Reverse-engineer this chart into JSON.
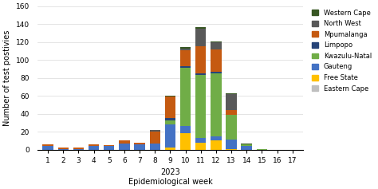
{
  "weeks": [
    1,
    2,
    3,
    4,
    5,
    6,
    7,
    8,
    9,
    10,
    11,
    12,
    13,
    14,
    15,
    16,
    17
  ],
  "provinces_bottom_to_top": [
    "Eastern Cape",
    "Free State",
    "Gauteng",
    "Kwazulu-Natal",
    "Limpopo",
    "Mpumalanga",
    "North West",
    "Western Cape"
  ],
  "colors": {
    "Eastern Cape": "#bfbfbf",
    "Free State": "#ffc000",
    "Gauteng": "#4472c4",
    "Kwazulu-Natal": "#70ad47",
    "Limpopo": "#264478",
    "Mpumalanga": "#c55a11",
    "North West": "#595959",
    "Western Cape": "#375623"
  },
  "data": {
    "Eastern Cape": [
      0,
      0,
      0,
      0,
      0,
      0,
      0,
      0,
      0,
      0,
      0,
      0,
      0,
      0,
      0,
      0,
      0
    ],
    "Free State": [
      0,
      0,
      0,
      0,
      0,
      0,
      0,
      0,
      2,
      18,
      8,
      10,
      1,
      0,
      0,
      0,
      0
    ],
    "Gauteng": [
      4,
      1,
      1,
      4,
      4,
      7,
      6,
      7,
      26,
      8,
      5,
      5,
      10,
      4,
      0,
      0,
      0
    ],
    "Kwazulu-Natal": [
      0,
      0,
      0,
      0,
      0,
      0,
      0,
      0,
      5,
      65,
      70,
      70,
      28,
      2,
      1,
      0,
      0
    ],
    "Limpopo": [
      0,
      0,
      0,
      0,
      0,
      0,
      0,
      0,
      2,
      2,
      2,
      2,
      0,
      0,
      0,
      0,
      0
    ],
    "Mpumalanga": [
      2,
      1,
      1,
      2,
      1,
      3,
      2,
      13,
      24,
      18,
      30,
      25,
      5,
      0,
      0,
      0,
      0
    ],
    "North West": [
      0,
      0,
      0,
      0,
      0,
      0,
      0,
      2,
      0,
      2,
      20,
      8,
      18,
      0,
      0,
      0,
      0
    ],
    "Western Cape": [
      0,
      0,
      0,
      0,
      0,
      0,
      0,
      0,
      1,
      1,
      2,
      1,
      1,
      1,
      0,
      0,
      0
    ]
  },
  "legend_order": [
    "Western Cape",
    "North West",
    "Mpumalanga",
    "Limpopo",
    "Kwazulu-Natal",
    "Gauteng",
    "Free State",
    "Eastern Cape"
  ],
  "ylabel": "Number of test postivies",
  "xlabel": "Epidemiological week",
  "year_label": "2023",
  "ylim": [
    0,
    160
  ],
  "yticks": [
    0,
    20,
    40,
    60,
    80,
    100,
    120,
    140,
    160
  ],
  "figsize": [
    4.74,
    2.37
  ],
  "dpi": 100
}
